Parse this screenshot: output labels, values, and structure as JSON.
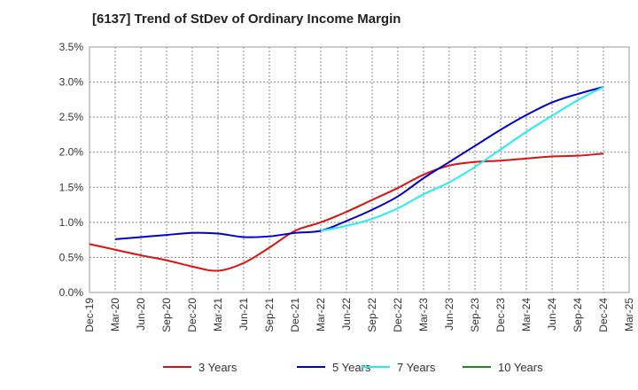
{
  "chart_data": {
    "type": "line",
    "title": "[6137]  Trend of StDev of Ordinary Income Margin",
    "x": [
      "Dec-19",
      "Mar-20",
      "Jun-20",
      "Sep-20",
      "Dec-20",
      "Mar-21",
      "Jun-21",
      "Sep-21",
      "Dec-21",
      "Mar-22",
      "Jun-22",
      "Sep-22",
      "Dec-22",
      "Mar-23",
      "Jun-23",
      "Sep-23",
      "Dec-23",
      "Mar-24",
      "Jun-24",
      "Sep-24",
      "Dec-24",
      "Mar-25"
    ],
    "yticks": [
      "0.0%",
      "0.5%",
      "1.0%",
      "1.5%",
      "2.0%",
      "2.5%",
      "3.0%",
      "3.5%"
    ],
    "ylim": [
      0,
      3.5
    ],
    "grid": true,
    "legend_position": "bottom",
    "series": [
      {
        "name": "3 Years",
        "color": "#dd1111",
        "values": [
          0.69,
          0.61,
          0.53,
          0.46,
          0.37,
          0.31,
          0.42,
          0.64,
          0.88,
          1.0,
          1.15,
          1.32,
          1.49,
          1.68,
          1.81,
          1.86,
          1.88,
          1.91,
          1.94,
          1.95,
          1.98,
          null
        ]
      },
      {
        "name": "5 Years",
        "color": "#0000cc",
        "values": [
          null,
          0.76,
          0.79,
          0.82,
          0.85,
          0.84,
          0.79,
          0.8,
          0.85,
          0.88,
          1.02,
          1.18,
          1.37,
          1.63,
          1.86,
          2.09,
          2.32,
          2.53,
          2.71,
          2.83,
          2.93,
          null
        ]
      },
      {
        "name": "7 Years",
        "color": "#22eeee",
        "values": [
          null,
          null,
          null,
          null,
          null,
          null,
          null,
          null,
          null,
          0.88,
          0.95,
          1.05,
          1.2,
          1.4,
          1.57,
          1.79,
          2.04,
          2.29,
          2.52,
          2.74,
          2.93,
          null
        ]
      },
      {
        "name": "10 Years",
        "color": "#228822",
        "values": [
          null,
          null,
          null,
          null,
          null,
          null,
          null,
          null,
          null,
          null,
          null,
          null,
          null,
          null,
          null,
          null,
          null,
          null,
          null,
          null,
          null,
          null
        ]
      }
    ]
  }
}
